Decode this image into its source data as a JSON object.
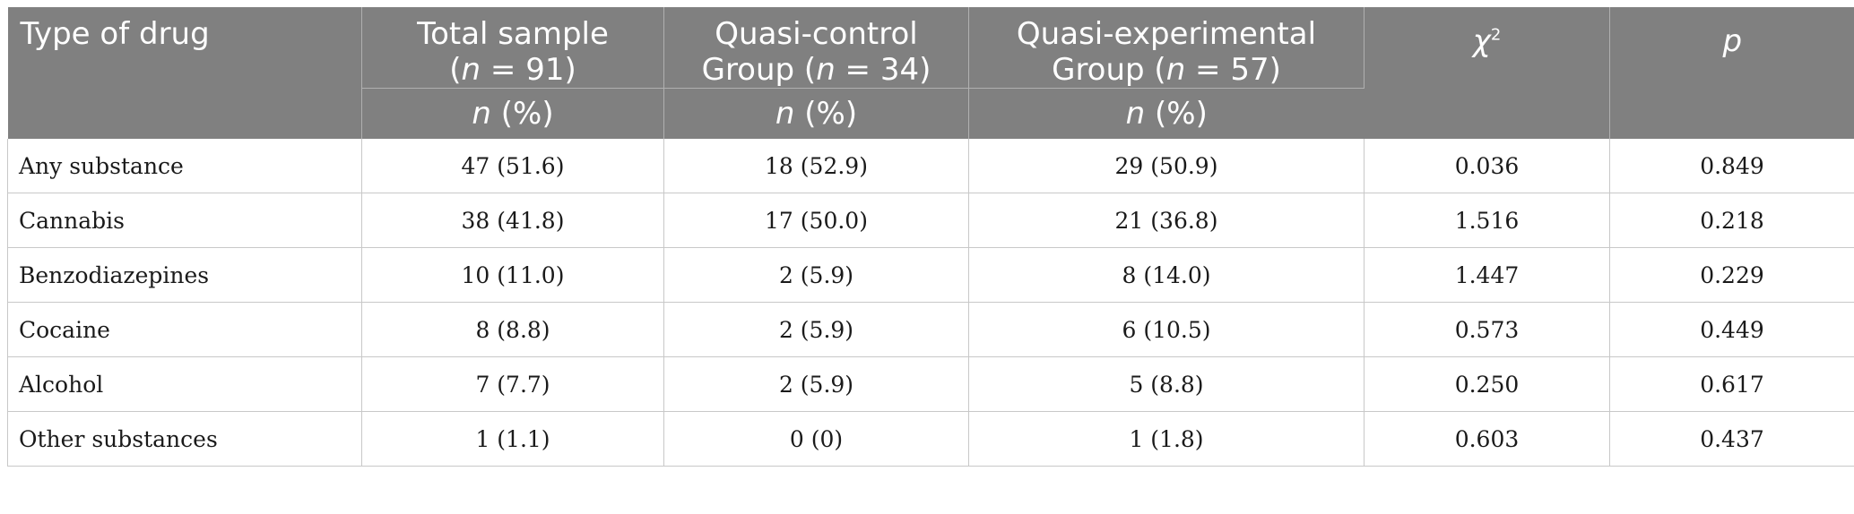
{
  "table": {
    "headers": {
      "type_of_drug": "Type of drug",
      "total_sample": {
        "label": "Total sample",
        "n_label": "n",
        "n_rest": " = 91)"
      },
      "quasi_control": {
        "label_line1": "Quasi-control",
        "label_line2": "Group (",
        "n_label": "n",
        "n_rest": " = 34)"
      },
      "quasi_experimental": {
        "label_line1": "Quasi-experimental",
        "label_line2": "Group (",
        "n_label": "n",
        "n_rest": " = 57)"
      },
      "chi_symbol": "χ",
      "chi_sup": "2",
      "p": "p",
      "subheader_n": "n",
      "subheader_pct": " (%)"
    },
    "rows": [
      {
        "drug": "Any substance",
        "total": "47 (51.6)",
        "control": "18 (52.9)",
        "experimental": "29 (50.9)",
        "chi2": "0.036",
        "p": "0.849"
      },
      {
        "drug": "Cannabis",
        "total": "38 (41.8)",
        "control": "17 (50.0)",
        "experimental": "21 (36.8)",
        "chi2": "1.516",
        "p": "0.218"
      },
      {
        "drug": "Benzodiazepines",
        "total": "10 (11.0)",
        "control": "2 (5.9)",
        "experimental": "8 (14.0)",
        "chi2": "1.447",
        "p": "0.229"
      },
      {
        "drug": "Cocaine",
        "total": "8 (8.8)",
        "control": "2 (5.9)",
        "experimental": "6 (10.5)",
        "chi2": "0.573",
        "p": "0.449"
      },
      {
        "drug": "Alcohol",
        "total": "7 (7.7)",
        "control": "2 (5.9)",
        "experimental": "5 (8.8)",
        "chi2": "0.250",
        "p": "0.617"
      },
      {
        "drug": "Other substances",
        "total": "1 (1.1)",
        "control": "0 (0)",
        "experimental": "1 (1.8)",
        "chi2": "0.603",
        "p": "0.437"
      }
    ]
  }
}
